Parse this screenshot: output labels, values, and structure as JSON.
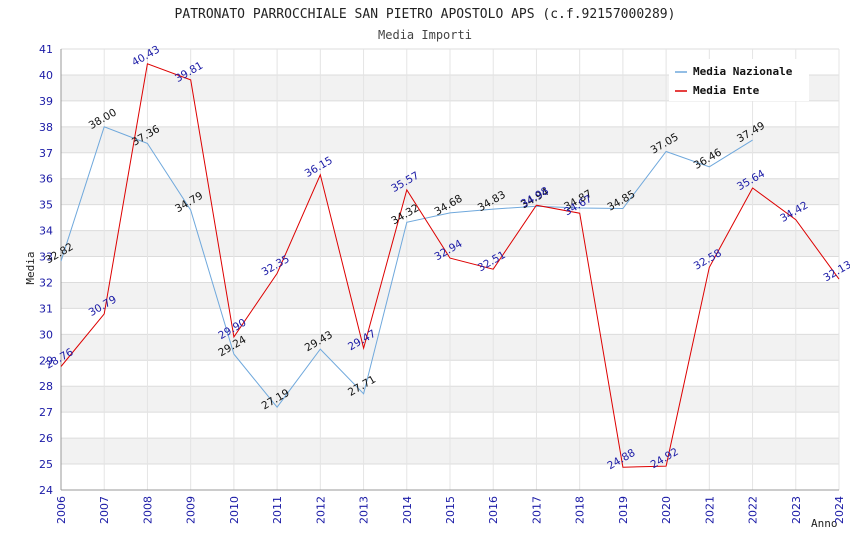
{
  "chart_data": {
    "type": "line",
    "title": "PATRONATO PARROCCHIALE SAN PIETRO APOSTOLO APS (c.f.92157000289)",
    "subtitle": "Media Importi",
    "xlabel": "Anno",
    "ylabel": "Media",
    "ylim": [
      24,
      41
    ],
    "x": [
      "2006",
      "2007",
      "2008",
      "2009",
      "2010",
      "2011",
      "2012",
      "2013",
      "2014",
      "2015",
      "2016",
      "2017",
      "2018",
      "2019",
      "2020",
      "2021",
      "2022",
      "2023",
      "2024"
    ],
    "yticks": [
      "24",
      "25",
      "26",
      "27",
      "28",
      "29",
      "30",
      "31",
      "32",
      "33",
      "34",
      "35",
      "36",
      "37",
      "38",
      "39",
      "40",
      "41"
    ],
    "legend_position": "top-right",
    "series": [
      {
        "name": "Media Nazionale",
        "color": "#6fa8dc",
        "label_color": "#111111",
        "values": [
          32.82,
          38.0,
          37.36,
          34.79,
          29.24,
          27.19,
          29.43,
          27.71,
          34.32,
          34.68,
          34.83,
          34.94,
          34.87,
          34.85,
          37.05,
          36.46,
          37.49,
          null,
          null
        ],
        "labels": [
          "32.82",
          "38.00",
          "37.36",
          "34.79",
          "29.24",
          "27.19",
          "29.43",
          "27.71",
          "34.32",
          "34.68",
          "34.83",
          "34.94",
          "34.87",
          "34.85",
          "37.05",
          "36.46",
          "37.49",
          null,
          null
        ]
      },
      {
        "name": "Media Ente",
        "color": "#dd0000",
        "label_color": "#1a1aa6",
        "values": [
          28.76,
          30.79,
          40.43,
          39.81,
          29.9,
          32.35,
          36.15,
          29.47,
          35.57,
          32.94,
          32.51,
          34.98,
          34.67,
          24.88,
          24.92,
          32.58,
          35.64,
          34.42,
          32.13
        ],
        "labels": [
          "28.76",
          "30.79",
          "40.43",
          "39.81",
          "29.90",
          "32.35",
          "36.15",
          "29.47",
          "35.57",
          "32.94",
          "32.51",
          "34.98",
          "34.67",
          "24.88",
          "24.92",
          "32.58",
          "35.64",
          "34.42",
          "32.13"
        ]
      }
    ]
  }
}
